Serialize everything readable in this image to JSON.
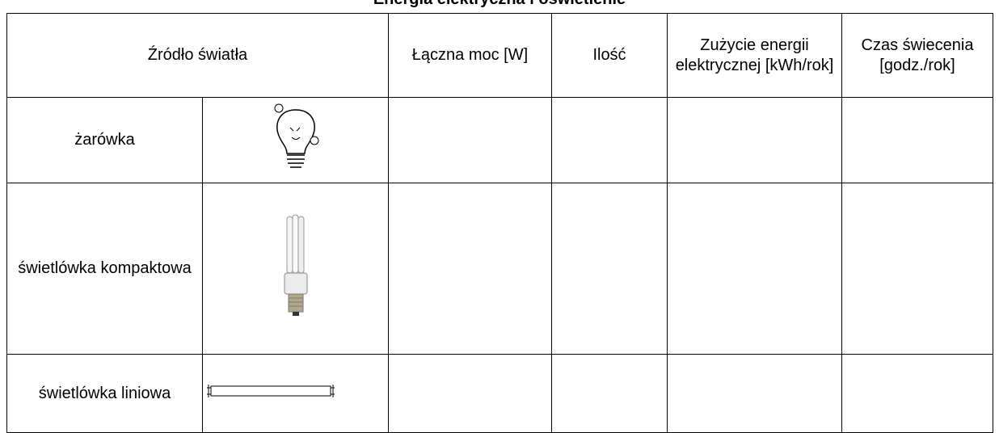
{
  "title": "Energia elektryczna i oświetlenie",
  "table": {
    "headers": [
      "Źródło światła",
      "Łączna moc [W]",
      "Ilość",
      "Zużycie energii elektrycznej [kWh/rok]",
      "Czas świecenia [godz./rok]"
    ],
    "rows": [
      "żarówka",
      "świetlówka kompaktowa",
      "świetlówka liniowa"
    ]
  }
}
